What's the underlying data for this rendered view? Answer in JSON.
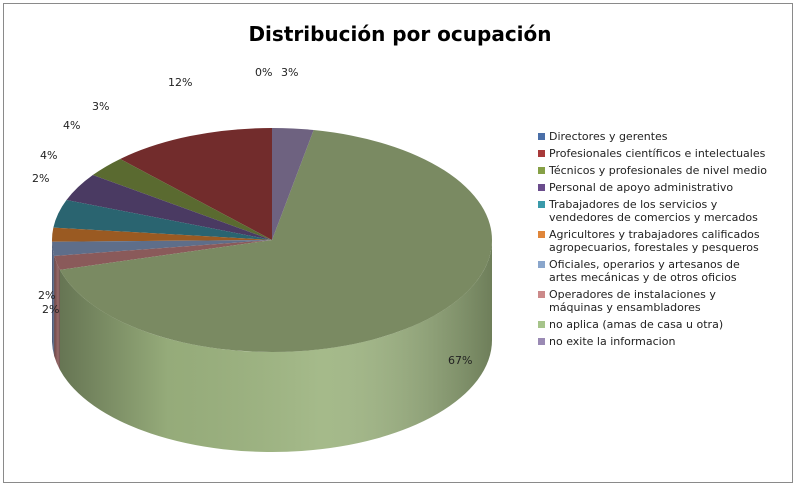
{
  "chart_data": {
    "type": "pie",
    "title": "Distribución por ocupación",
    "style": "3d",
    "legend_position": "right",
    "categories": [
      "Directores y gerentes",
      "Profesionales científicos e intelectuales",
      "Técnicos y profesionales de nivel medio",
      "Personal de apoyo administrativo",
      "Trabajadores de los servicios y\nvendedores de comercios y mercados",
      "Agricultores y trabajadores calificados\nagropecuarios, forestales y pesqueros",
      "Oficiales, operarios y artesanos de\nartes mecánicas y de otros oficios",
      "Operadores de instalaciones y\nmáquinas y ensambladores",
      "no aplica (amas de casa u otra)",
      "no exite la informacion"
    ],
    "values": [
      0,
      12,
      3,
      4,
      4,
      2,
      2,
      2,
      67,
      3
    ],
    "labels": [
      "0%",
      "12%",
      "3%",
      "4%",
      "4%",
      "2%",
      "2%",
      "2%",
      "67%",
      "3%"
    ],
    "colors": [
      "#4a6fa8",
      "#a83a3a",
      "#86a046",
      "#6a4c8c",
      "#3a9aaa",
      "#e0863a",
      "#8aa6cc",
      "#cc8a8a",
      "#a6c48a",
      "#9a8ab4"
    ],
    "top_colors": [
      "#3e5b88",
      "#722c2c",
      "#5a6a30",
      "#4a3a62",
      "#2a6470",
      "#9a5a22",
      "#5e6e8a",
      "#8a5a5a",
      "#7a8a62",
      "#6e6280"
    ],
    "side_colors": [
      "#3e5b88",
      "#6a2828",
      "#556430",
      "#42345a",
      "#285e6a",
      "#8e5420",
      "#58688a",
      "#8a5a5a",
      "#9db480",
      "#6a5f7c"
    ]
  }
}
